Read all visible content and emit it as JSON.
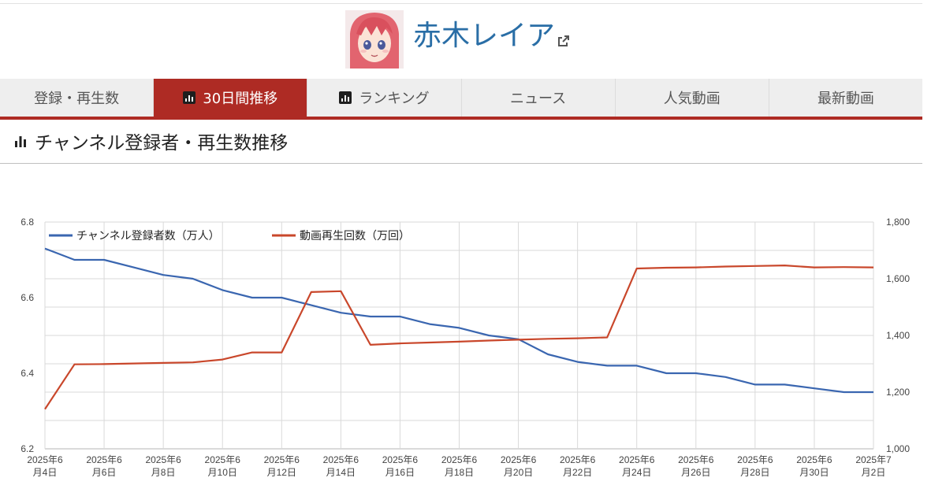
{
  "channel": {
    "name": "赤木レイア",
    "external_link_icon": "external-link-icon",
    "avatar_icon": "anime-avatar-icon"
  },
  "tabs": [
    {
      "label": "登録・再生数",
      "active": false,
      "icon": null
    },
    {
      "label": "30日間推移",
      "active": true,
      "icon": "bar-chart-icon"
    },
    {
      "label": "ランキング",
      "active": false,
      "icon": "bar-chart-icon"
    },
    {
      "label": "ニュース",
      "active": false,
      "icon": null
    },
    {
      "label": "人気動画",
      "active": false,
      "icon": null
    },
    {
      "label": "最新動画",
      "active": false,
      "icon": null
    }
  ],
  "section": {
    "title": "チャンネル登録者・再生数推移",
    "icon": "bar-chart-icon"
  },
  "colors": {
    "accent": "#ae2b24",
    "title_link": "#2a6ea6",
    "subscribers": "#3a66b0",
    "views": "#c9472b",
    "grid": "#d9d9d9"
  },
  "chart_data": {
    "type": "line",
    "x": [
      "2025年6月4日",
      "2025年6月5日",
      "2025年6月6日",
      "2025年6月7日",
      "2025年6月8日",
      "2025年6月9日",
      "2025年6月10日",
      "2025年6月11日",
      "2025年6月12日",
      "2025年6月13日",
      "2025年6月14日",
      "2025年6月15日",
      "2025年6月16日",
      "2025年6月17日",
      "2025年6月18日",
      "2025年6月19日",
      "2025年6月20日",
      "2025年6月21日",
      "2025年6月22日",
      "2025年6月23日",
      "2025年6月24日",
      "2025年6月25日",
      "2025年6月26日",
      "2025年6月27日",
      "2025年6月28日",
      "2025年6月29日",
      "2025年6月30日",
      "2025年7月1日",
      "2025年7月2日"
    ],
    "tick_labels": [
      {
        "line1": "2025年6",
        "line2": "月4日"
      },
      {
        "line1": "2025年6",
        "line2": "月6日"
      },
      {
        "line1": "2025年6",
        "line2": "月8日"
      },
      {
        "line1": "2025年6",
        "line2": "月10日"
      },
      {
        "line1": "2025年6",
        "line2": "月12日"
      },
      {
        "line1": "2025年6",
        "line2": "月14日"
      },
      {
        "line1": "2025年6",
        "line2": "月16日"
      },
      {
        "line1": "2025年6",
        "line2": "月18日"
      },
      {
        "line1": "2025年6",
        "line2": "月20日"
      },
      {
        "line1": "2025年6",
        "line2": "月22日"
      },
      {
        "line1": "2025年6",
        "line2": "月24日"
      },
      {
        "line1": "2025年6",
        "line2": "月26日"
      },
      {
        "line1": "2025年6",
        "line2": "月28日"
      },
      {
        "line1": "2025年6",
        "line2": "月30日"
      },
      {
        "line1": "2025年7",
        "line2": "月2日"
      }
    ],
    "y_left": {
      "min": 6.2,
      "max": 6.8,
      "ticks": [
        "6.2",
        "6.4",
        "6.6",
        "6.8"
      ]
    },
    "y_right": {
      "min": 1000,
      "max": 1800,
      "ticks": [
        "1,000",
        "1,200",
        "1,400",
        "1,600",
        "1,800"
      ]
    },
    "series": [
      {
        "name": "チャンネル登録者数（万人）",
        "axis": "left",
        "color": "#3a66b0",
        "values": [
          6.73,
          6.7,
          6.7,
          6.68,
          6.66,
          6.65,
          6.62,
          6.6,
          6.6,
          6.58,
          6.56,
          6.55,
          6.55,
          6.53,
          6.52,
          6.5,
          6.49,
          6.45,
          6.43,
          6.42,
          6.42,
          6.4,
          6.4,
          6.39,
          6.37,
          6.37,
          6.36,
          6.35,
          6.35
        ]
      },
      {
        "name": "動画再生回数（万回）",
        "axis": "right",
        "color": "#c9472b",
        "values": [
          1140,
          1298,
          1299,
          1301,
          1303,
          1305,
          1315,
          1340,
          1340,
          1553,
          1556,
          1367,
          1372,
          1375,
          1378,
          1382,
          1385,
          1388,
          1390,
          1393,
          1636,
          1639,
          1640,
          1643,
          1645,
          1647,
          1640,
          1641,
          1640
        ]
      }
    ],
    "legend_position": "top-left",
    "grid": true
  }
}
